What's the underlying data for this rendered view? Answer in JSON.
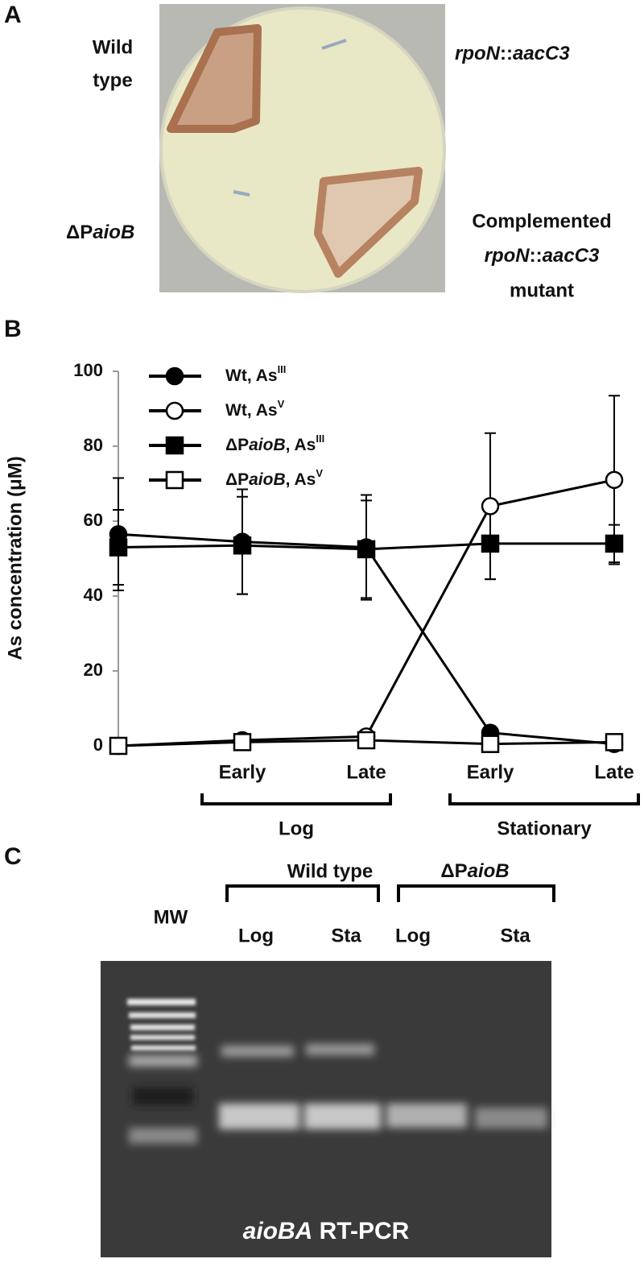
{
  "panel_a": {
    "panel_label": "A",
    "wild_type": [
      "Wild",
      "type"
    ],
    "mutant": [
      {
        "text": "rpoN",
        "style": "italic"
      },
      {
        "text": "::"
      },
      {
        "text": "aacC3",
        "style": "italic"
      }
    ],
    "deletion": [
      {
        "text": "ΔP"
      },
      {
        "text": "aioB",
        "style": "italic"
      }
    ],
    "complemented": [
      "Complemented",
      [
        {
          "text": "rpoN",
          "style": "italic"
        },
        {
          "text": "::"
        },
        {
          "text": "aacC3",
          "style": "italic"
        }
      ],
      "mutant"
    ]
  },
  "chart_data": {
    "type": "line",
    "panel_label": "B",
    "y_label": "As concentration (μM)",
    "categories": [
      null,
      "Early",
      "Late",
      "Early",
      "Late"
    ],
    "groups": [
      {
        "label": "Log",
        "from": 1,
        "to": 2
      },
      {
        "label": "Stationary",
        "from": 3,
        "to": 4
      }
    ],
    "ylim": [
      0,
      100
    ],
    "yticks": [
      0,
      20,
      40,
      60,
      80,
      100
    ],
    "series": [
      {
        "name": [
          {
            "text": "Wt, As"
          },
          {
            "text": "III",
            "style": "sup"
          }
        ],
        "color": "#000000",
        "marker": "circle",
        "fill": "#000000",
        "values": [
          56.5,
          54.5,
          53,
          3.5,
          0.5
        ],
        "errors": [
          15,
          14,
          14,
          1,
          0.5
        ]
      },
      {
        "name": [
          {
            "text": "Wt, As"
          },
          {
            "text": "V",
            "style": "sup"
          }
        ],
        "color": "#000000",
        "marker": "circle",
        "fill": "#ffffff",
        "values": [
          0,
          1.5,
          2.5,
          64,
          71
        ],
        "errors": [
          0.5,
          1,
          1,
          19.5,
          22.5
        ]
      },
      {
        "name": [
          {
            "text": "ΔP"
          },
          {
            "text": "aioB",
            "style": "italic"
          },
          {
            "text": ", As"
          },
          {
            "text": "III",
            "style": "sup"
          }
        ],
        "color": "#000000",
        "marker": "square",
        "fill": "#000000",
        "values": [
          53,
          53.5,
          52.5,
          54,
          54
        ],
        "errors": [
          10,
          13,
          13,
          9.5,
          5
        ]
      },
      {
        "name": [
          {
            "text": "ΔP"
          },
          {
            "text": "aioB",
            "style": "italic"
          },
          {
            "text": ", As"
          },
          {
            "text": "V",
            "style": "sup"
          }
        ],
        "color": "#000000",
        "marker": "square",
        "fill": "#ffffff",
        "values": [
          0,
          1,
          1.5,
          0.5,
          1
        ],
        "errors": [
          0,
          0.5,
          0.5,
          0.5,
          0.5
        ]
      }
    ]
  },
  "panel_c": {
    "panel_label": "C",
    "groups": [
      "Wild type",
      [
        {
          "text": "ΔP"
        },
        {
          "text": "aioB",
          "style": "italic"
        }
      ]
    ],
    "lanes": [
      "MW",
      "Log",
      "Sta",
      "Log",
      "Sta"
    ],
    "caption": [
      {
        "text": "aioBA",
        "style": "italic"
      },
      {
        "text": " RT-PCR"
      }
    ]
  }
}
